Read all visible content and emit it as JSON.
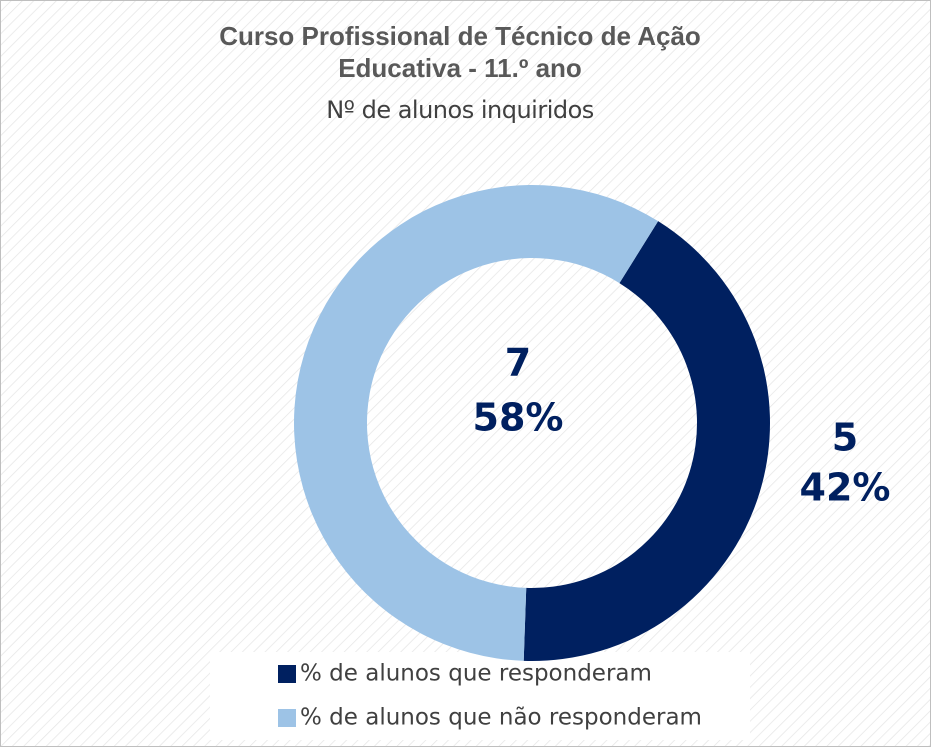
{
  "chart_data": {
    "type": "donut",
    "title": "Curso Profissional de Técnico de Ação Educativa - 11.º ano",
    "subtitle": "Nº de alunos inquiridos",
    "categories": [
      "% de alunos que responderam",
      "% de alunos que não responderam"
    ],
    "values": [
      5,
      7
    ],
    "percent_labels": [
      "42%",
      "58%"
    ],
    "colors": [
      "#002060",
      "#9dc3e6"
    ],
    "legend": "bottom"
  }
}
